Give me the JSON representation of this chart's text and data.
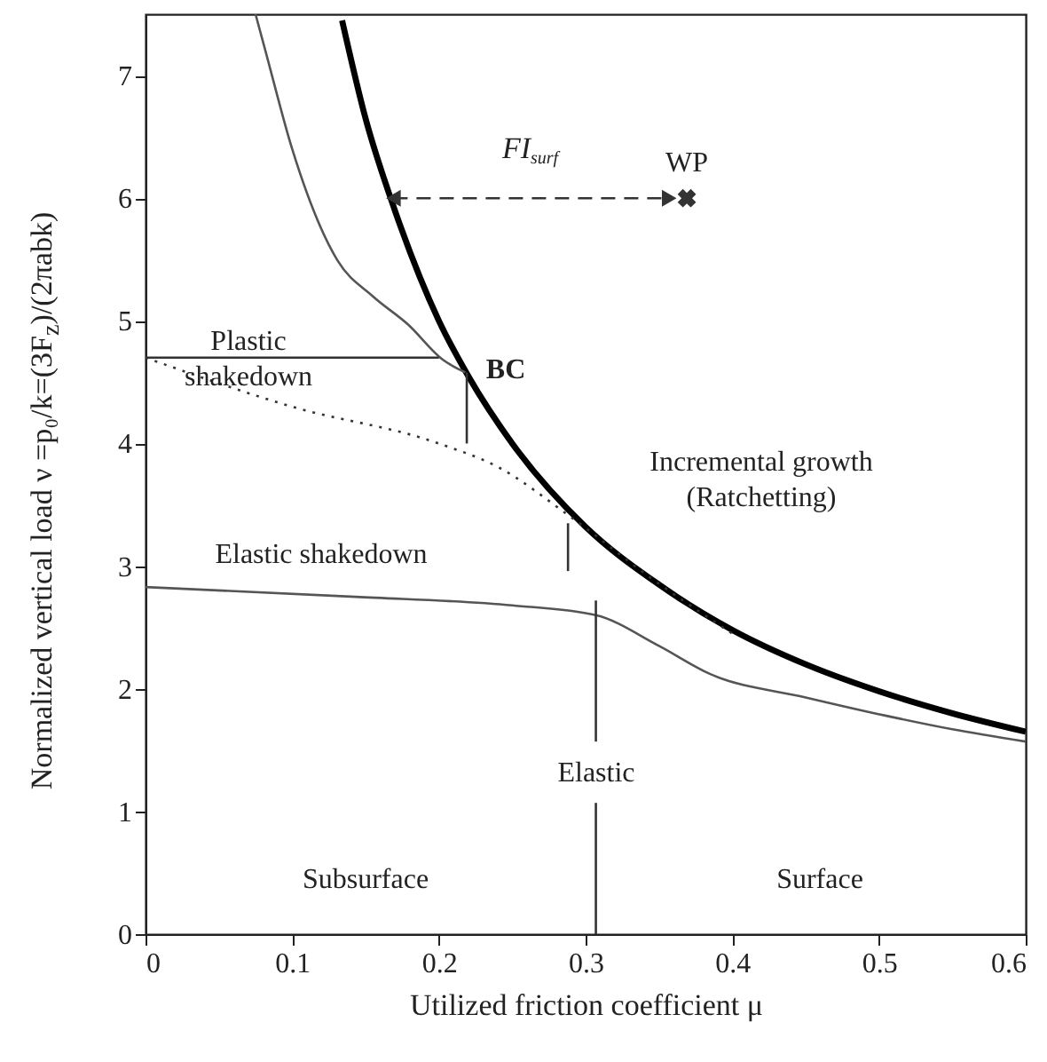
{
  "chart_data": {
    "type": "line",
    "xlabel": "Utilized friction coefficient μ",
    "ylabel": "Normalized vertical load ν =p₀/k=(3F$_{z}$)/(2πabk)",
    "xlim": [
      0,
      0.6
    ],
    "xticks": [
      0,
      0.1,
      0.2,
      0.3,
      0.4,
      0.5,
      0.6
    ],
    "ylim": [
      0,
      7.5
    ],
    "yticks": [
      0,
      1,
      2,
      3,
      4,
      5,
      6,
      7
    ],
    "series": [
      {
        "color": "#000000",
        "x": [
          0.134,
          0.15,
          0.17,
          0.2,
          0.22,
          0.25,
          0.3,
          0.35,
          0.4,
          0.45,
          0.5,
          0.55,
          0.6
        ],
        "values": [
          7.45,
          6.65,
          5.9,
          5.0,
          4.55,
          4.0,
          3.32,
          2.85,
          2.48,
          2.2,
          1.98,
          1.8,
          1.65
        ]
      },
      {
        "color": "#555555",
        "x": [
          0.075,
          0.082,
          0.1,
          0.131,
          0.155,
          0.179,
          0.203,
          0.218
        ],
        "values": [
          7.5,
          7.19,
          6.4,
          5.49,
          5.2,
          4.97,
          4.68,
          4.58
        ]
      },
      {
        "color": "#333333",
        "x": [
          0,
          0.2
        ],
        "values": [
          4.7,
          4.7
        ]
      },
      {
        "color": "#333333",
        "line_style": "dotted",
        "x": [
          0,
          0.1,
          0.2,
          0.24,
          0.29,
          0.345,
          0.4
        ],
        "values": [
          4.7,
          4.3,
          4.0,
          3.81,
          3.4,
          2.9,
          2.45
        ]
      },
      {
        "color": "#333333",
        "x": [
          0.219,
          0.219
        ],
        "values": [
          4.58,
          4.0
        ]
      },
      {
        "color": "#333333",
        "x": [
          0.288,
          0.288
        ],
        "values": [
          3.35,
          2.96
        ]
      },
      {
        "color": "#555555",
        "x": [
          0,
          0.143,
          0.25,
          0.307,
          0.35,
          0.385,
          0.45,
          0.505,
          0.55,
          0.6
        ],
        "values": [
          2.83,
          2.75,
          2.68,
          2.6,
          2.35,
          2.12,
          1.93,
          1.78,
          1.67,
          1.57
        ]
      },
      {
        "color": "#333333",
        "x": [
          0.307,
          0.307
        ],
        "values": [
          2.72,
          1.57
        ]
      },
      {
        "color": "#333333",
        "x": [
          0.307,
          0.307
        ],
        "values": [
          1.07,
          0
        ]
      },
      {
        "color": "#333333",
        "line_style": "dashed",
        "marker": "triangle",
        "x": [
          0.169,
          0.357
        ],
        "values": [
          6,
          6
        ]
      },
      {
        "type": "scatter",
        "name": "WP",
        "color": "#333333",
        "marker": "cross",
        "x": [
          0.369
        ],
        "values": [
          6
        ]
      }
    ],
    "annotations": [
      "FI$_{surf}$",
      "BC",
      "Plastic\nshakedown",
      "Incremental growth\n(Ratchetting)",
      "Elastic shakedown",
      "Elastic",
      "Subsurface",
      "Surface"
    ]
  }
}
